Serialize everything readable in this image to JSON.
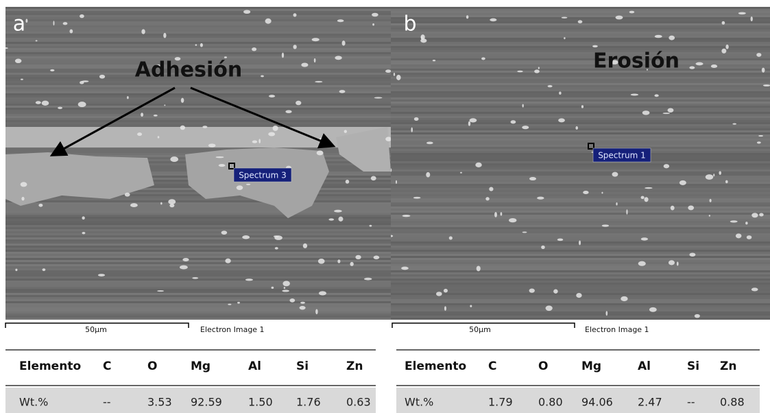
{
  "panels": [
    {
      "label": "a",
      "annotation": "Adhesión",
      "spectrum": "Spectrum 3",
      "scale_bar": "50µm",
      "image_caption": "Electron Image 1",
      "table": {
        "header": [
          "Elemento",
          "C",
          "O",
          "Mg",
          "Al",
          "Si",
          "Zn"
        ],
        "rows": [
          [
            "Wt.%",
            "--",
            "3.53",
            "92.59",
            "1.50",
            "1.76",
            "0.63"
          ]
        ]
      }
    },
    {
      "label": "b",
      "annotation": "Erosión",
      "spectrum": "Spectrum 1",
      "scale_bar": "50µm",
      "image_caption": "Electron Image 1",
      "table": {
        "header": [
          "Elemento",
          "C",
          "O",
          "Mg",
          "Al",
          "Si",
          "Zn"
        ],
        "rows": [
          [
            "Wt.%",
            "1.79",
            "0.80",
            "94.06",
            "2.47",
            "--",
            "0.88"
          ]
        ]
      }
    }
  ]
}
